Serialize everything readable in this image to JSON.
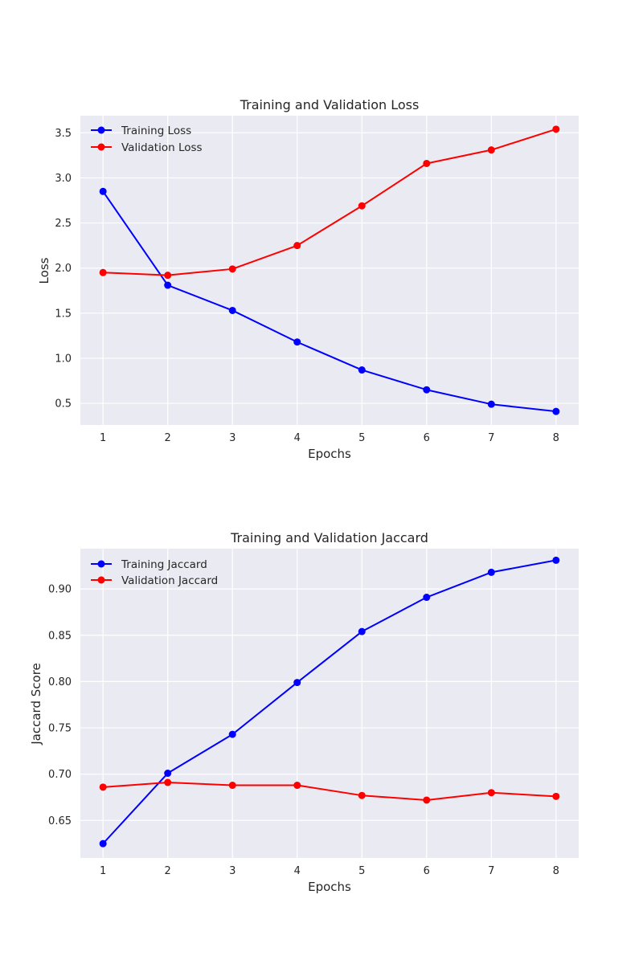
{
  "colors": {
    "plot_background": "#eaeaf2",
    "grid": "#ffffff",
    "training": "#0000ff",
    "validation": "#ff0000",
    "text": "#262626"
  },
  "chart_data": [
    {
      "type": "line",
      "title": "Training and Validation Loss",
      "xlabel": "Epochs",
      "ylabel": "Loss",
      "x": [
        1,
        2,
        3,
        4,
        5,
        6,
        7,
        8
      ],
      "xlim": [
        0.65,
        8.35
      ],
      "ylim": [
        0.26,
        3.69
      ],
      "yticks": [
        0.5,
        1.0,
        1.5,
        2.0,
        2.5,
        3.0,
        3.5
      ],
      "ytick_labels": [
        "0.5",
        "1.0",
        "1.5",
        "2.0",
        "2.5",
        "3.0",
        "3.5"
      ],
      "xtick_labels": [
        "1",
        "2",
        "3",
        "4",
        "5",
        "6",
        "7",
        "8"
      ],
      "grid": true,
      "legend_position": "top-left",
      "series": [
        {
          "name": "Training Loss",
          "color_key": "training",
          "values": [
            2.85,
            1.81,
            1.53,
            1.18,
            0.87,
            0.65,
            0.49,
            0.41
          ]
        },
        {
          "name": "Validation Loss",
          "color_key": "validation",
          "values": [
            1.95,
            1.92,
            1.99,
            2.25,
            2.69,
            3.16,
            3.31,
            3.54
          ]
        }
      ]
    },
    {
      "type": "line",
      "title": "Training and Validation Jaccard",
      "xlabel": "Epochs",
      "ylabel": "Jaccard Score",
      "x": [
        1,
        2,
        3,
        4,
        5,
        6,
        7,
        8
      ],
      "xlim": [
        0.65,
        8.35
      ],
      "ylim": [
        0.6095,
        0.9435
      ],
      "yticks": [
        0.65,
        0.7,
        0.75,
        0.8,
        0.85,
        0.9
      ],
      "ytick_labels": [
        "0.65",
        "0.70",
        "0.75",
        "0.80",
        "0.85",
        "0.90"
      ],
      "xtick_labels": [
        "1",
        "2",
        "3",
        "4",
        "5",
        "6",
        "7",
        "8"
      ],
      "grid": true,
      "legend_position": "top-left",
      "series": [
        {
          "name": "Training Jaccard",
          "color_key": "training",
          "values": [
            0.625,
            0.701,
            0.743,
            0.799,
            0.854,
            0.891,
            0.918,
            0.931
          ]
        },
        {
          "name": "Validation Jaccard",
          "color_key": "validation",
          "values": [
            0.686,
            0.691,
            0.688,
            0.688,
            0.677,
            0.672,
            0.68,
            0.676
          ]
        }
      ]
    }
  ]
}
